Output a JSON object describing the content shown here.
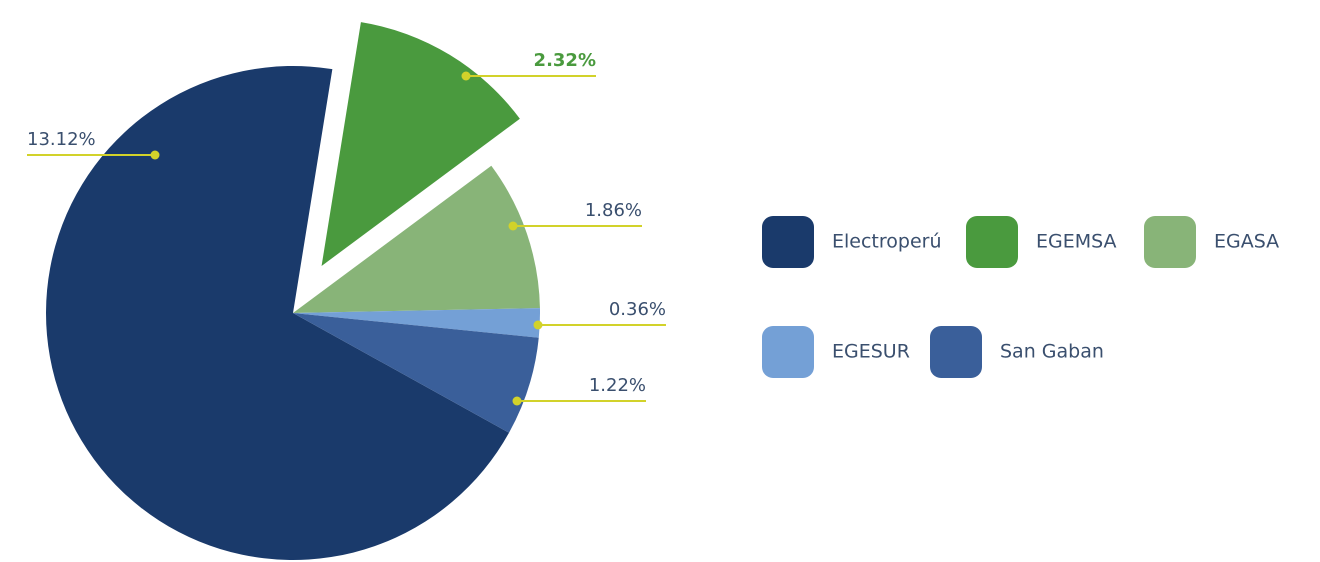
{
  "chart_data": {
    "type": "pie",
    "categories": [
      "Electroperú",
      "EGEMSA",
      "EGASA",
      "EGESUR",
      "San Gaban"
    ],
    "values": [
      13.12,
      2.32,
      1.86,
      0.36,
      1.22
    ],
    "value_labels": [
      "13.12%",
      "2.32%",
      "1.86%",
      "0.36%",
      "1.22%"
    ],
    "colors": [
      "#1a3a6b",
      "#4a9a3e",
      "#88b478",
      "#74a0d6",
      "#3a5f9a"
    ],
    "legend": "right"
  }
}
